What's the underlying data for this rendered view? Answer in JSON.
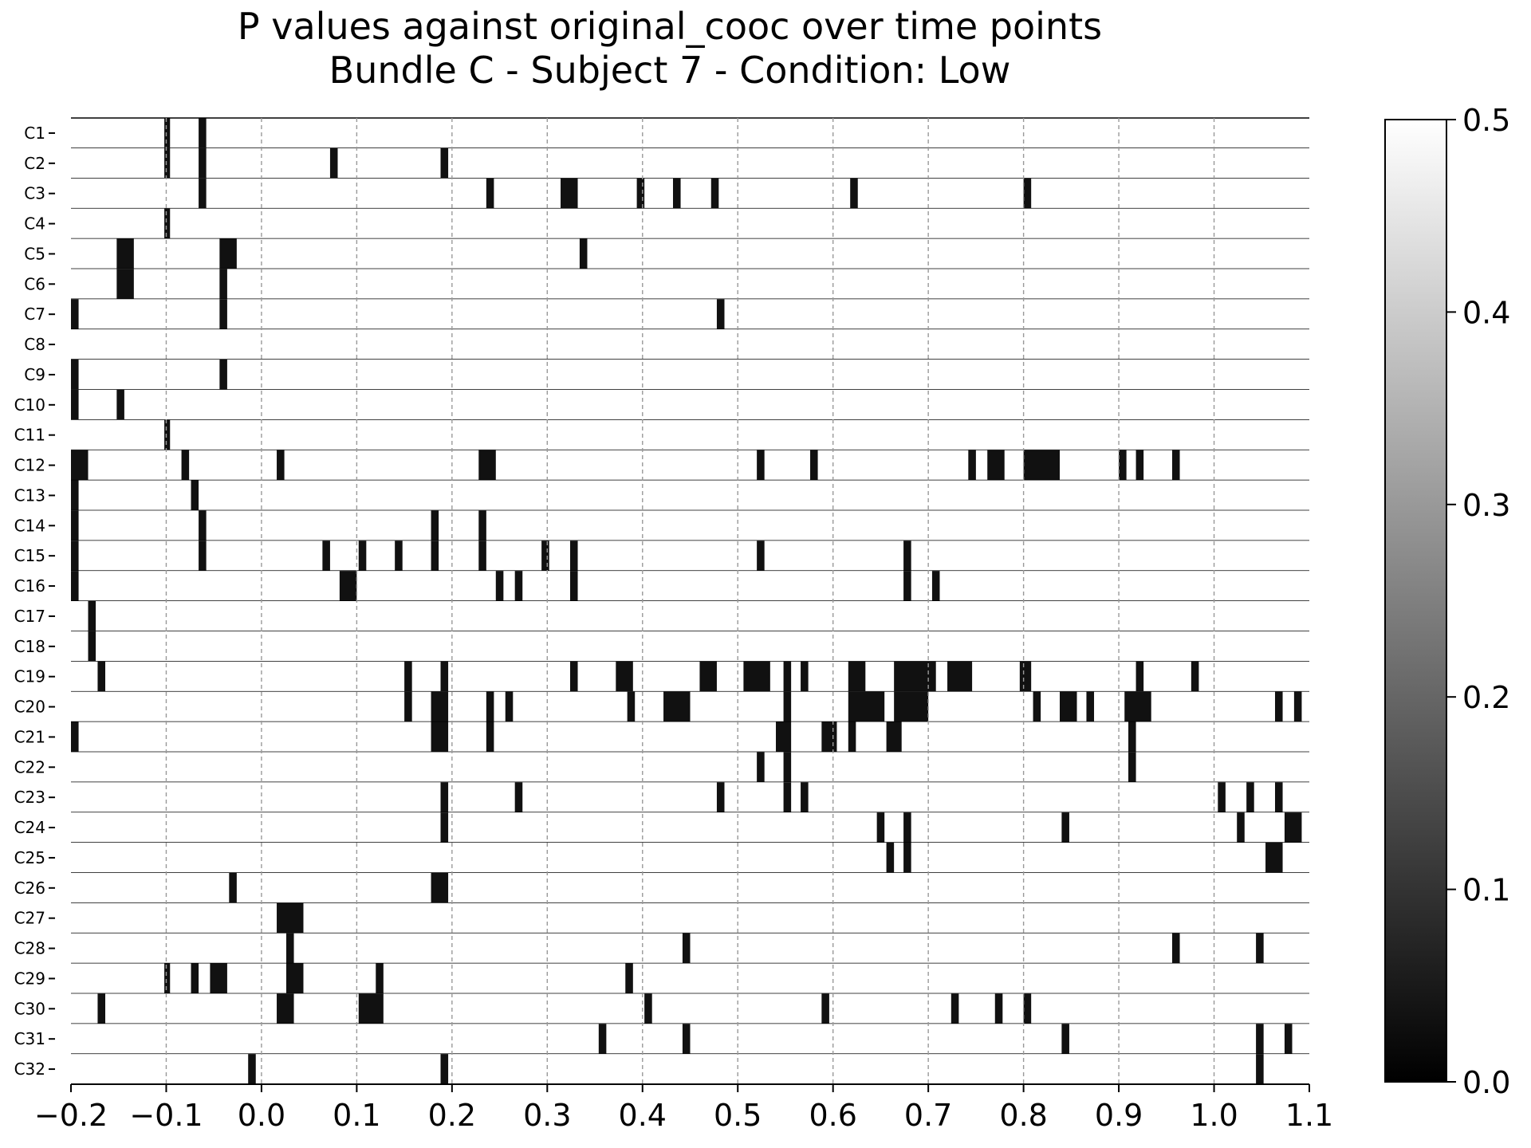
{
  "chart_data": {
    "type": "heatmap",
    "title": [
      "P values against original_cooc over time points",
      "Bundle C - Subject 7 - Condition: Low"
    ],
    "xlim": [
      -0.2,
      1.1
    ],
    "x_ticks": [
      "−0.2",
      "−0.1",
      "0.0",
      "0.1",
      "0.2",
      "0.3",
      "0.4",
      "0.5",
      "0.6",
      "0.7",
      "0.8",
      "0.9",
      "1.0",
      "1.1"
    ],
    "x_tick_values": [
      -0.2,
      -0.1,
      0.0,
      0.1,
      0.2,
      0.3,
      0.4,
      0.5,
      0.6,
      0.7,
      0.8,
      0.9,
      1.0,
      1.1
    ],
    "grid": "vertical dashed at x ticks",
    "colormap": "grayscale",
    "colorbar": {
      "range": [
        0.0,
        0.5
      ],
      "ticks": [
        "0.0",
        "0.1",
        "0.2",
        "0.3",
        "0.4",
        "0.5"
      ],
      "tick_values": [
        0.0,
        0.1,
        0.2,
        0.3,
        0.4,
        0.5
      ]
    },
    "rows": [
      {
        "label": "C1",
        "dark": [
          [
            -0.102,
            -0.096
          ],
          [
            -0.066,
            -0.058
          ]
        ]
      },
      {
        "label": "C2",
        "dark": [
          [
            -0.102,
            -0.096
          ],
          [
            -0.066,
            -0.058
          ],
          [
            0.072,
            0.08
          ],
          [
            0.188,
            0.196
          ]
        ]
      },
      {
        "label": "C3",
        "dark": [
          [
            -0.066,
            -0.058
          ],
          [
            0.236,
            0.244
          ],
          [
            0.314,
            0.332
          ],
          [
            0.394,
            0.402
          ],
          [
            0.432,
            0.44
          ],
          [
            0.472,
            0.48
          ],
          [
            0.618,
            0.626
          ],
          [
            0.8,
            0.808
          ]
        ]
      },
      {
        "label": "C4",
        "dark": [
          [
            -0.102,
            -0.096
          ]
        ]
      },
      {
        "label": "C5",
        "dark": [
          [
            -0.152,
            -0.134
          ],
          [
            -0.044,
            -0.026
          ],
          [
            0.334,
            0.342
          ]
        ]
      },
      {
        "label": "C6",
        "dark": [
          [
            -0.152,
            -0.134
          ],
          [
            -0.044,
            -0.036
          ]
        ]
      },
      {
        "label": "C7",
        "dark": [
          [
            -0.2,
            -0.192
          ],
          [
            -0.044,
            -0.036
          ],
          [
            0.478,
            0.486
          ]
        ]
      },
      {
        "label": "C8",
        "dark": []
      },
      {
        "label": "C9",
        "dark": [
          [
            -0.2,
            -0.192
          ],
          [
            -0.044,
            -0.036
          ]
        ]
      },
      {
        "label": "C10",
        "dark": [
          [
            -0.2,
            -0.192
          ],
          [
            -0.152,
            -0.144
          ]
        ]
      },
      {
        "label": "C11",
        "dark": [
          [
            -0.102,
            -0.096
          ]
        ]
      },
      {
        "label": "C12",
        "dark": [
          [
            -0.2,
            -0.182
          ],
          [
            -0.084,
            -0.076
          ],
          [
            0.016,
            0.024
          ],
          [
            0.228,
            0.246
          ],
          [
            0.52,
            0.528
          ],
          [
            0.576,
            0.584
          ],
          [
            0.742,
            0.75
          ],
          [
            0.762,
            0.78
          ],
          [
            0.8,
            0.838
          ],
          [
            0.9,
            0.908
          ],
          [
            0.918,
            0.926
          ],
          [
            0.956,
            0.964
          ]
        ]
      },
      {
        "label": "C13",
        "dark": [
          [
            -0.2,
            -0.192
          ],
          [
            -0.074,
            -0.066
          ]
        ]
      },
      {
        "label": "C14",
        "dark": [
          [
            -0.2,
            -0.192
          ],
          [
            -0.066,
            -0.058
          ],
          [
            0.178,
            0.186
          ],
          [
            0.228,
            0.236
          ]
        ]
      },
      {
        "label": "C15",
        "dark": [
          [
            -0.2,
            -0.192
          ],
          [
            -0.066,
            -0.058
          ],
          [
            0.064,
            0.072
          ],
          [
            0.102,
            0.11
          ],
          [
            0.14,
            0.148
          ],
          [
            0.178,
            0.186
          ],
          [
            0.228,
            0.236
          ],
          [
            0.294,
            0.302
          ],
          [
            0.324,
            0.332
          ],
          [
            0.52,
            0.528
          ],
          [
            0.674,
            0.682
          ]
        ]
      },
      {
        "label": "C16",
        "dark": [
          [
            -0.2,
            -0.192
          ],
          [
            0.082,
            0.1
          ],
          [
            0.246,
            0.254
          ],
          [
            0.266,
            0.274
          ],
          [
            0.324,
            0.332
          ],
          [
            0.674,
            0.682
          ],
          [
            0.704,
            0.712
          ]
        ]
      },
      {
        "label": "C17",
        "dark": [
          [
            -0.182,
            -0.174
          ]
        ]
      },
      {
        "label": "C18",
        "dark": [
          [
            -0.182,
            -0.174
          ]
        ]
      },
      {
        "label": "C19",
        "dark": [
          [
            -0.172,
            -0.164
          ],
          [
            0.15,
            0.158
          ],
          [
            0.188,
            0.196
          ],
          [
            0.324,
            0.332
          ],
          [
            0.372,
            0.39
          ],
          [
            0.46,
            0.478
          ],
          [
            0.506,
            0.534
          ],
          [
            0.548,
            0.556
          ],
          [
            0.566,
            0.574
          ],
          [
            0.616,
            0.634
          ],
          [
            0.664,
            0.708
          ],
          [
            0.72,
            0.746
          ],
          [
            0.796,
            0.808
          ],
          [
            0.918,
            0.926
          ],
          [
            0.976,
            0.984
          ]
        ]
      },
      {
        "label": "C20",
        "dark": [
          [
            0.15,
            0.158
          ],
          [
            0.178,
            0.196
          ],
          [
            0.236,
            0.244
          ],
          [
            0.256,
            0.264
          ],
          [
            0.384,
            0.392
          ],
          [
            0.422,
            0.45
          ],
          [
            0.548,
            0.556
          ],
          [
            0.616,
            0.654
          ],
          [
            0.664,
            0.7
          ],
          [
            0.81,
            0.818
          ],
          [
            0.838,
            0.856
          ],
          [
            0.866,
            0.874
          ],
          [
            0.906,
            0.934
          ],
          [
            1.064,
            1.072
          ],
          [
            1.084,
            1.092
          ]
        ]
      },
      {
        "label": "C21",
        "dark": [
          [
            -0.2,
            -0.192
          ],
          [
            0.178,
            0.196
          ],
          [
            0.236,
            0.244
          ],
          [
            0.54,
            0.556
          ],
          [
            0.588,
            0.604
          ],
          [
            0.616,
            0.624
          ],
          [
            0.656,
            0.672
          ],
          [
            0.91,
            0.918
          ]
        ]
      },
      {
        "label": "C22",
        "dark": [
          [
            0.52,
            0.528
          ],
          [
            0.548,
            0.556
          ],
          [
            0.91,
            0.918
          ]
        ]
      },
      {
        "label": "C23",
        "dark": [
          [
            0.188,
            0.196
          ],
          [
            0.266,
            0.274
          ],
          [
            0.478,
            0.486
          ],
          [
            0.548,
            0.556
          ],
          [
            0.566,
            0.574
          ],
          [
            1.004,
            1.012
          ],
          [
            1.034,
            1.042
          ],
          [
            1.064,
            1.072
          ]
        ]
      },
      {
        "label": "C24",
        "dark": [
          [
            0.188,
            0.196
          ],
          [
            0.646,
            0.654
          ],
          [
            0.674,
            0.682
          ],
          [
            0.84,
            0.848
          ],
          [
            1.024,
            1.032
          ],
          [
            1.074,
            1.092
          ]
        ]
      },
      {
        "label": "C25",
        "dark": [
          [
            0.656,
            0.664
          ],
          [
            0.674,
            0.682
          ],
          [
            1.054,
            1.072
          ]
        ]
      },
      {
        "label": "C26",
        "dark": [
          [
            -0.034,
            -0.026
          ],
          [
            0.178,
            0.196
          ]
        ]
      },
      {
        "label": "C27",
        "dark": [
          [
            0.016,
            0.044
          ]
        ]
      },
      {
        "label": "C28",
        "dark": [
          [
            0.026,
            0.034
          ],
          [
            0.442,
            0.45
          ],
          [
            0.956,
            0.964
          ],
          [
            1.044,
            1.052
          ]
        ]
      },
      {
        "label": "C29",
        "dark": [
          [
            -0.102,
            -0.096
          ],
          [
            -0.074,
            -0.066
          ],
          [
            -0.054,
            -0.036
          ],
          [
            0.026,
            0.044
          ],
          [
            0.12,
            0.128
          ],
          [
            0.382,
            0.39
          ]
        ]
      },
      {
        "label": "C30",
        "dark": [
          [
            -0.172,
            -0.164
          ],
          [
            0.016,
            0.034
          ],
          [
            0.102,
            0.128
          ],
          [
            0.402,
            0.41
          ],
          [
            0.588,
            0.596
          ],
          [
            0.724,
            0.732
          ],
          [
            0.77,
            0.778
          ],
          [
            0.8,
            0.808
          ]
        ]
      },
      {
        "label": "C31",
        "dark": [
          [
            0.354,
            0.362
          ],
          [
            0.442,
            0.45
          ],
          [
            0.84,
            0.848
          ],
          [
            1.044,
            1.052
          ],
          [
            1.074,
            1.082
          ]
        ]
      },
      {
        "label": "C32",
        "dark": [
          [
            -0.014,
            -0.006
          ],
          [
            0.188,
            0.196
          ],
          [
            1.044,
            1.052
          ]
        ]
      }
    ]
  }
}
